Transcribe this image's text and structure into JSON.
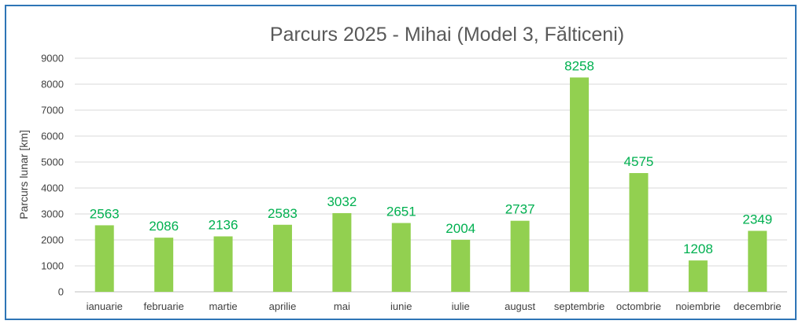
{
  "chart_data": {
    "type": "bar",
    "title": "Parcurs 2025 - Mihai (Model 3, Fălticeni)",
    "xlabel": "",
    "ylabel": "Parcurs lunar [km]",
    "ylim": [
      0,
      9000
    ],
    "yticks": [
      "0",
      "1000",
      "2000",
      "3000",
      "4000",
      "5000",
      "6000",
      "7000",
      "8000",
      "9000"
    ],
    "categories": [
      "ianuarie",
      "februarie",
      "martie",
      "aprilie",
      "mai",
      "iunie",
      "iulie",
      "august",
      "septembrie",
      "octombrie",
      "noiembrie",
      "decembrie"
    ],
    "values": [
      2563,
      2086,
      2136,
      2583,
      3032,
      2651,
      2004,
      2737,
      8258,
      4575,
      1208,
      2349
    ],
    "data_labels": [
      "2563",
      "2086",
      "2136",
      "2583",
      "3032",
      "2651",
      "2004",
      "2737",
      "8258",
      "4575",
      "1208",
      "2349"
    ],
    "grid": true,
    "legend": "none",
    "bar_color": "#92d050",
    "label_color": "#00b050",
    "frame_color": "#2e75b6"
  }
}
